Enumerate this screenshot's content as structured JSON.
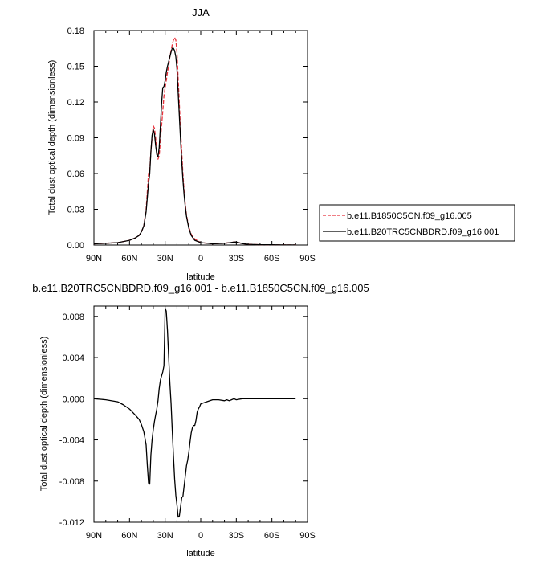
{
  "chart_data": [
    {
      "type": "line",
      "title": "JJA",
      "xlabel": "latitude",
      "ylabel": "Total dust optical depth (dimensionless)",
      "xlim": [
        90,
        -90
      ],
      "ylim": [
        0,
        0.18
      ],
      "x_ticks": [
        90,
        60,
        30,
        0,
        -30,
        -60,
        -90
      ],
      "x_tick_labels": [
        "90N",
        "60N",
        "30N",
        "0",
        "30S",
        "60S",
        "90S"
      ],
      "y_ticks": [
        0,
        0.03,
        0.06,
        0.09,
        0.12,
        0.15,
        0.18
      ],
      "y_tick_labels": [
        "0.00",
        "0.03",
        "0.06",
        "0.09",
        "0.12",
        "0.15",
        "0.18"
      ],
      "legend_position": "right",
      "series": [
        {
          "name": "b.e11.B1850C5CN.f09_g16.005",
          "color": "#e8323c",
          "dash": true,
          "x": [
            90,
            80,
            70,
            65,
            60,
            55,
            52,
            50,
            48,
            46,
            45,
            44,
            43,
            42,
            41,
            40,
            39,
            38,
            37,
            36,
            35,
            34,
            33,
            32,
            31,
            30,
            29,
            28,
            27,
            26,
            25,
            24,
            23,
            22,
            21,
            20,
            19,
            18,
            17,
            16,
            15,
            14,
            13,
            12,
            10,
            8,
            5,
            0,
            -10,
            -20,
            -25,
            -28,
            -30,
            -32,
            -35,
            -40,
            -50,
            -60,
            -70,
            -80
          ],
          "y": [
            0.001,
            0.0015,
            0.002,
            0.003,
            0.004,
            0.006,
            0.008,
            0.011,
            0.016,
            0.03,
            0.045,
            0.06,
            0.063,
            0.078,
            0.09,
            0.1,
            0.098,
            0.09,
            0.078,
            0.072,
            0.075,
            0.088,
            0.1,
            0.112,
            0.125,
            0.132,
            0.138,
            0.145,
            0.15,
            0.158,
            0.163,
            0.168,
            0.172,
            0.174,
            0.172,
            0.162,
            0.14,
            0.118,
            0.096,
            0.078,
            0.06,
            0.045,
            0.034,
            0.025,
            0.015,
            0.009,
            0.005,
            0.002,
            0.001,
            0.0015,
            0.002,
            0.0025,
            0.0025,
            0.002,
            0.0012,
            0.0006,
            0.0003,
            0.0002,
            0.0001,
            0.0001
          ]
        },
        {
          "name": "b.e11.B20TRC5CNBDRD.f09_g16.001",
          "color": "#000000",
          "dash": false,
          "x": [
            90,
            80,
            70,
            65,
            60,
            55,
            52,
            50,
            48,
            46,
            45,
            44,
            43,
            42,
            41,
            40,
            39,
            38,
            37,
            36,
            35,
            34,
            33,
            32,
            31,
            30,
            29,
            28,
            27,
            26,
            25,
            24,
            23,
            22,
            21,
            20,
            19,
            18,
            17,
            16,
            15,
            14,
            13,
            12,
            10,
            8,
            5,
            0,
            -10,
            -20,
            -25,
            -28,
            -30,
            -32,
            -35,
            -40,
            -50,
            -60,
            -70,
            -80
          ],
          "y": [
            0.001,
            0.0015,
            0.002,
            0.003,
            0.004,
            0.006,
            0.008,
            0.011,
            0.016,
            0.028,
            0.04,
            0.052,
            0.06,
            0.078,
            0.092,
            0.097,
            0.093,
            0.084,
            0.076,
            0.074,
            0.082,
            0.1,
            0.118,
            0.132,
            0.133,
            0.138,
            0.145,
            0.15,
            0.154,
            0.158,
            0.162,
            0.165,
            0.165,
            0.163,
            0.158,
            0.148,
            0.128,
            0.108,
            0.088,
            0.07,
            0.055,
            0.042,
            0.032,
            0.024,
            0.014,
            0.008,
            0.004,
            0.002,
            0.001,
            0.0015,
            0.002,
            0.0025,
            0.0025,
            0.002,
            0.0012,
            0.0006,
            0.0003,
            0.0002,
            0.0001,
            0.0001
          ]
        }
      ]
    },
    {
      "type": "line",
      "title": "b.e11.B20TRC5CNBDRD.f09_g16.001 - b.e11.B1850C5CN.f09_g16.005",
      "xlabel": "latitude",
      "ylabel": "Total dust optical depth (dimensionless)",
      "xlim": [
        90,
        -90
      ],
      "ylim": [
        -0.012,
        0.009
      ],
      "x_ticks": [
        90,
        60,
        30,
        0,
        -30,
        -60,
        -90
      ],
      "x_tick_labels": [
        "90N",
        "60N",
        "30N",
        "0",
        "30S",
        "60S",
        "90S"
      ],
      "y_ticks": [
        -0.012,
        -0.008,
        -0.004,
        0,
        0.004,
        0.008
      ],
      "y_tick_labels": [
        "-0.012",
        "-0.008",
        "-0.004",
        "0.000",
        "0.004",
        "0.008"
      ],
      "series": [
        {
          "color": "#000000",
          "x": [
            90,
            80,
            70,
            65,
            60,
            55,
            52,
            50,
            48,
            47,
            46,
            45,
            44,
            43,
            42,
            41,
            40,
            39,
            38,
            37,
            36,
            35,
            34,
            33,
            32,
            31,
            30,
            29,
            28,
            27,
            26,
            25,
            24,
            23,
            22,
            21,
            20,
            19,
            18,
            17,
            16,
            15,
            14,
            13,
            12,
            11,
            10,
            9,
            8,
            7,
            6,
            5,
            4,
            3,
            2,
            1,
            0,
            -5,
            -10,
            -15,
            -20,
            -22,
            -24,
            -26,
            -28,
            -30,
            -35,
            -40,
            -50,
            -60,
            -70,
            -80
          ],
          "y": [
            0,
            -0.0001,
            -0.0003,
            -0.0006,
            -0.001,
            -0.0016,
            -0.002,
            -0.0025,
            -0.0032,
            -0.0038,
            -0.0045,
            -0.0065,
            -0.0082,
            -0.0083,
            -0.0055,
            -0.004,
            -0.003,
            -0.0022,
            -0.0016,
            -0.001,
            -0.0002,
            0.001,
            0.0018,
            0.0022,
            0.0026,
            0.0032,
            0.0088,
            0.0085,
            0.0066,
            0.004,
            0.0015,
            -0.0005,
            -0.003,
            -0.0055,
            -0.0078,
            -0.0094,
            -0.0103,
            -0.0115,
            -0.0114,
            -0.0105,
            -0.0096,
            -0.0095,
            -0.0085,
            -0.0075,
            -0.0065,
            -0.006,
            -0.0052,
            -0.0042,
            -0.0033,
            -0.0028,
            -0.0026,
            -0.0026,
            -0.0021,
            -0.0013,
            -0.001,
            -0.0008,
            -0.0005,
            -0.0003,
            -0.0001,
            -0.0001,
            -0.0002,
            -0.0001,
            -0.0002,
            -0.0001,
            0,
            -0.0001,
            0,
            0,
            0,
            0,
            0,
            0
          ]
        }
      ]
    }
  ]
}
